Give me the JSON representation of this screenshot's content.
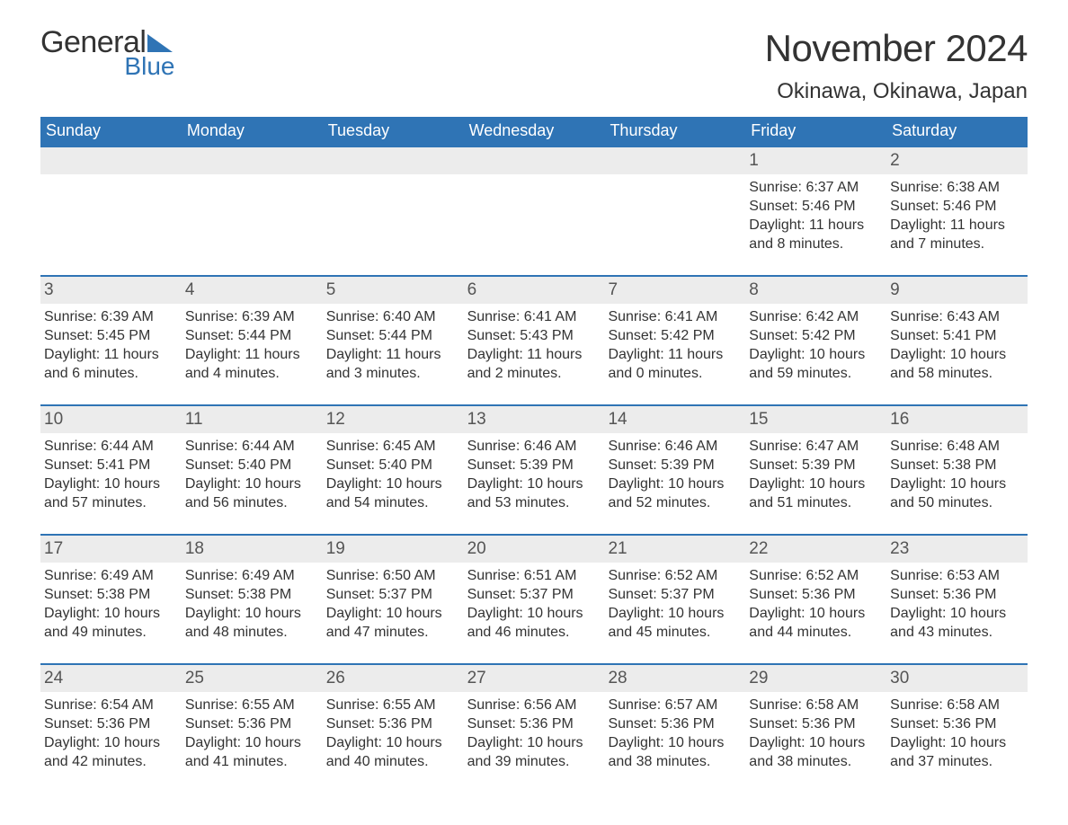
{
  "logo": {
    "text1": "General",
    "text2": "Blue"
  },
  "title": "November 2024",
  "location": "Okinawa, Okinawa, Japan",
  "colors": {
    "header_bg": "#2f74b5",
    "header_text": "#ffffff",
    "daynum_bg": "#ececec",
    "border": "#2f74b5",
    "body_text": "#333333",
    "page_bg": "#ffffff"
  },
  "typography": {
    "title_fontsize": 42,
    "location_fontsize": 24,
    "weekday_fontsize": 18,
    "cell_fontsize": 16,
    "daynum_fontsize": 19
  },
  "weekdays": [
    "Sunday",
    "Monday",
    "Tuesday",
    "Wednesday",
    "Thursday",
    "Friday",
    "Saturday"
  ],
  "weeks": [
    [
      {
        "n": "",
        "sunrise": "",
        "sunset": "",
        "day1": "",
        "day2": ""
      },
      {
        "n": "",
        "sunrise": "",
        "sunset": "",
        "day1": "",
        "day2": ""
      },
      {
        "n": "",
        "sunrise": "",
        "sunset": "",
        "day1": "",
        "day2": ""
      },
      {
        "n": "",
        "sunrise": "",
        "sunset": "",
        "day1": "",
        "day2": ""
      },
      {
        "n": "",
        "sunrise": "",
        "sunset": "",
        "day1": "",
        "day2": ""
      },
      {
        "n": "1",
        "sunrise": "Sunrise: 6:37 AM",
        "sunset": "Sunset: 5:46 PM",
        "day1": "Daylight: 11 hours",
        "day2": "and 8 minutes."
      },
      {
        "n": "2",
        "sunrise": "Sunrise: 6:38 AM",
        "sunset": "Sunset: 5:46 PM",
        "day1": "Daylight: 11 hours",
        "day2": "and 7 minutes."
      }
    ],
    [
      {
        "n": "3",
        "sunrise": "Sunrise: 6:39 AM",
        "sunset": "Sunset: 5:45 PM",
        "day1": "Daylight: 11 hours",
        "day2": "and 6 minutes."
      },
      {
        "n": "4",
        "sunrise": "Sunrise: 6:39 AM",
        "sunset": "Sunset: 5:44 PM",
        "day1": "Daylight: 11 hours",
        "day2": "and 4 minutes."
      },
      {
        "n": "5",
        "sunrise": "Sunrise: 6:40 AM",
        "sunset": "Sunset: 5:44 PM",
        "day1": "Daylight: 11 hours",
        "day2": "and 3 minutes."
      },
      {
        "n": "6",
        "sunrise": "Sunrise: 6:41 AM",
        "sunset": "Sunset: 5:43 PM",
        "day1": "Daylight: 11 hours",
        "day2": "and 2 minutes."
      },
      {
        "n": "7",
        "sunrise": "Sunrise: 6:41 AM",
        "sunset": "Sunset: 5:42 PM",
        "day1": "Daylight: 11 hours",
        "day2": "and 0 minutes."
      },
      {
        "n": "8",
        "sunrise": "Sunrise: 6:42 AM",
        "sunset": "Sunset: 5:42 PM",
        "day1": "Daylight: 10 hours",
        "day2": "and 59 minutes."
      },
      {
        "n": "9",
        "sunrise": "Sunrise: 6:43 AM",
        "sunset": "Sunset: 5:41 PM",
        "day1": "Daylight: 10 hours",
        "day2": "and 58 minutes."
      }
    ],
    [
      {
        "n": "10",
        "sunrise": "Sunrise: 6:44 AM",
        "sunset": "Sunset: 5:41 PM",
        "day1": "Daylight: 10 hours",
        "day2": "and 57 minutes."
      },
      {
        "n": "11",
        "sunrise": "Sunrise: 6:44 AM",
        "sunset": "Sunset: 5:40 PM",
        "day1": "Daylight: 10 hours",
        "day2": "and 56 minutes."
      },
      {
        "n": "12",
        "sunrise": "Sunrise: 6:45 AM",
        "sunset": "Sunset: 5:40 PM",
        "day1": "Daylight: 10 hours",
        "day2": "and 54 minutes."
      },
      {
        "n": "13",
        "sunrise": "Sunrise: 6:46 AM",
        "sunset": "Sunset: 5:39 PM",
        "day1": "Daylight: 10 hours",
        "day2": "and 53 minutes."
      },
      {
        "n": "14",
        "sunrise": "Sunrise: 6:46 AM",
        "sunset": "Sunset: 5:39 PM",
        "day1": "Daylight: 10 hours",
        "day2": "and 52 minutes."
      },
      {
        "n": "15",
        "sunrise": "Sunrise: 6:47 AM",
        "sunset": "Sunset: 5:39 PM",
        "day1": "Daylight: 10 hours",
        "day2": "and 51 minutes."
      },
      {
        "n": "16",
        "sunrise": "Sunrise: 6:48 AM",
        "sunset": "Sunset: 5:38 PM",
        "day1": "Daylight: 10 hours",
        "day2": "and 50 minutes."
      }
    ],
    [
      {
        "n": "17",
        "sunrise": "Sunrise: 6:49 AM",
        "sunset": "Sunset: 5:38 PM",
        "day1": "Daylight: 10 hours",
        "day2": "and 49 minutes."
      },
      {
        "n": "18",
        "sunrise": "Sunrise: 6:49 AM",
        "sunset": "Sunset: 5:38 PM",
        "day1": "Daylight: 10 hours",
        "day2": "and 48 minutes."
      },
      {
        "n": "19",
        "sunrise": "Sunrise: 6:50 AM",
        "sunset": "Sunset: 5:37 PM",
        "day1": "Daylight: 10 hours",
        "day2": "and 47 minutes."
      },
      {
        "n": "20",
        "sunrise": "Sunrise: 6:51 AM",
        "sunset": "Sunset: 5:37 PM",
        "day1": "Daylight: 10 hours",
        "day2": "and 46 minutes."
      },
      {
        "n": "21",
        "sunrise": "Sunrise: 6:52 AM",
        "sunset": "Sunset: 5:37 PM",
        "day1": "Daylight: 10 hours",
        "day2": "and 45 minutes."
      },
      {
        "n": "22",
        "sunrise": "Sunrise: 6:52 AM",
        "sunset": "Sunset: 5:36 PM",
        "day1": "Daylight: 10 hours",
        "day2": "and 44 minutes."
      },
      {
        "n": "23",
        "sunrise": "Sunrise: 6:53 AM",
        "sunset": "Sunset: 5:36 PM",
        "day1": "Daylight: 10 hours",
        "day2": "and 43 minutes."
      }
    ],
    [
      {
        "n": "24",
        "sunrise": "Sunrise: 6:54 AM",
        "sunset": "Sunset: 5:36 PM",
        "day1": "Daylight: 10 hours",
        "day2": "and 42 minutes."
      },
      {
        "n": "25",
        "sunrise": "Sunrise: 6:55 AM",
        "sunset": "Sunset: 5:36 PM",
        "day1": "Daylight: 10 hours",
        "day2": "and 41 minutes."
      },
      {
        "n": "26",
        "sunrise": "Sunrise: 6:55 AM",
        "sunset": "Sunset: 5:36 PM",
        "day1": "Daylight: 10 hours",
        "day2": "and 40 minutes."
      },
      {
        "n": "27",
        "sunrise": "Sunrise: 6:56 AM",
        "sunset": "Sunset: 5:36 PM",
        "day1": "Daylight: 10 hours",
        "day2": "and 39 minutes."
      },
      {
        "n": "28",
        "sunrise": "Sunrise: 6:57 AM",
        "sunset": "Sunset: 5:36 PM",
        "day1": "Daylight: 10 hours",
        "day2": "and 38 minutes."
      },
      {
        "n": "29",
        "sunrise": "Sunrise: 6:58 AM",
        "sunset": "Sunset: 5:36 PM",
        "day1": "Daylight: 10 hours",
        "day2": "and 38 minutes."
      },
      {
        "n": "30",
        "sunrise": "Sunrise: 6:58 AM",
        "sunset": "Sunset: 5:36 PM",
        "day1": "Daylight: 10 hours",
        "day2": "and 37 minutes."
      }
    ]
  ]
}
